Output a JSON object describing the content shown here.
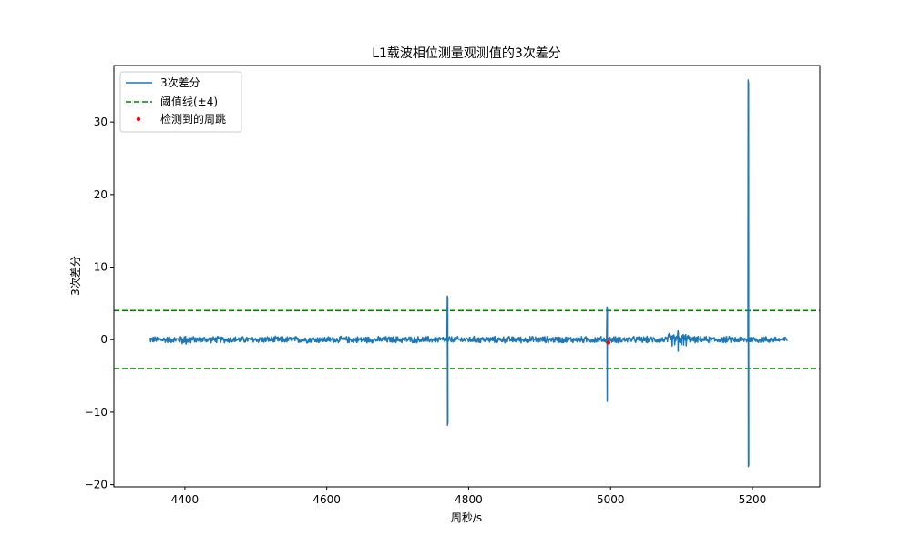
{
  "chart_data": {
    "type": "line",
    "title": "L1载波相位测量观测值的3次差分",
    "xlabel": "周秒/s",
    "ylabel": "3次差分",
    "xlim": [
      4300,
      5295
    ],
    "ylim": [
      -20.3,
      37.8
    ],
    "xticks": [
      4400,
      4600,
      4800,
      5000,
      5200
    ],
    "yticks": [
      -20,
      -10,
      0,
      10,
      20,
      30
    ],
    "ytick_labels": [
      "−20",
      "−10",
      "0",
      "10",
      "20",
      "30"
    ],
    "grid": false,
    "legend_position": "upper-left",
    "colors": {
      "series": "#1f77b4",
      "threshold": "#008000",
      "detected": "#ff0000"
    },
    "series": [
      {
        "name": "3次差分",
        "noise_x_range": [
          4350,
          5250
        ],
        "noise_amplitude": 0.5,
        "spikes": [
          {
            "x": 4770,
            "values": [
              6.0,
              -11.8,
              5.8,
              -11.5
            ]
          },
          {
            "x": 4995,
            "values": [
              4.5,
              -8.5,
              4.2
            ]
          },
          {
            "x": 5095,
            "values": [
              1.2,
              -1.6,
              1.0
            ]
          },
          {
            "x": 5194,
            "values": [
              35.8,
              -17.5,
              35.5,
              -17.3
            ]
          }
        ]
      }
    ],
    "threshold": {
      "name": "阈值线(±4)",
      "values": [
        4,
        -4
      ]
    },
    "detected": {
      "name": "检测到的周跳",
      "points": [
        [
          4997,
          -0.4
        ]
      ]
    }
  }
}
